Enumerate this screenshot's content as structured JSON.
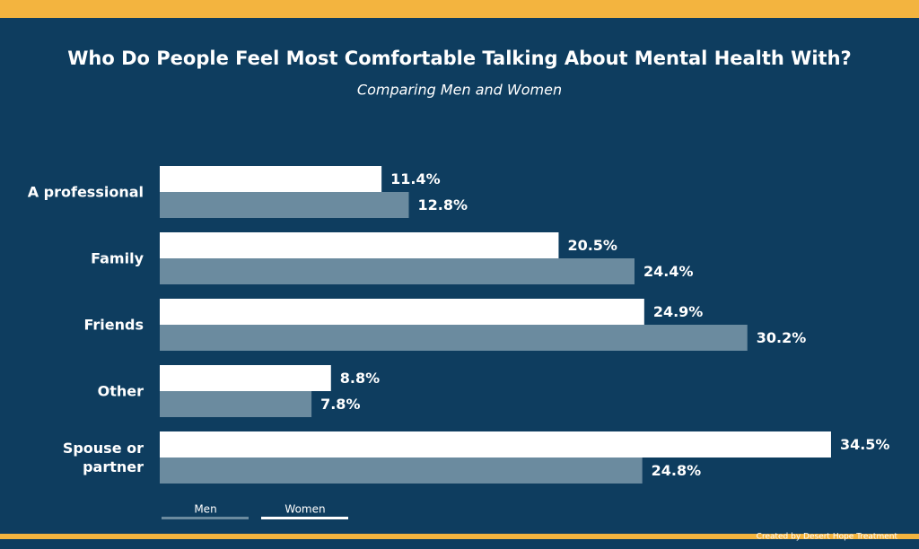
{
  "chart_data": {
    "type": "bar",
    "orientation": "horizontal",
    "title": "Who Do People Feel Most Comfortable Talking About Mental Health With?",
    "subtitle": "Comparing Men and Women",
    "categories": [
      "A professional",
      "Family",
      "Friends",
      "Other",
      "Spouse or partner"
    ],
    "series": [
      {
        "name": "Women",
        "color": "#ffffff",
        "values": [
          11.4,
          20.5,
          24.9,
          8.8,
          34.5
        ],
        "value_labels": [
          "11.4%",
          "20.5%",
          "24.9%",
          "8.8%",
          "34.5%"
        ]
      },
      {
        "name": "Men",
        "color": "#6b8b9f",
        "values": [
          12.8,
          24.4,
          30.2,
          7.8,
          24.8
        ],
        "value_labels": [
          "12.8%",
          "24.4%",
          "30.2%",
          "7.8%",
          "24.8%"
        ]
      }
    ],
    "legend_order": [
      "Men",
      "Women"
    ],
    "footer": "Created by Desert Hope Treatment"
  }
}
